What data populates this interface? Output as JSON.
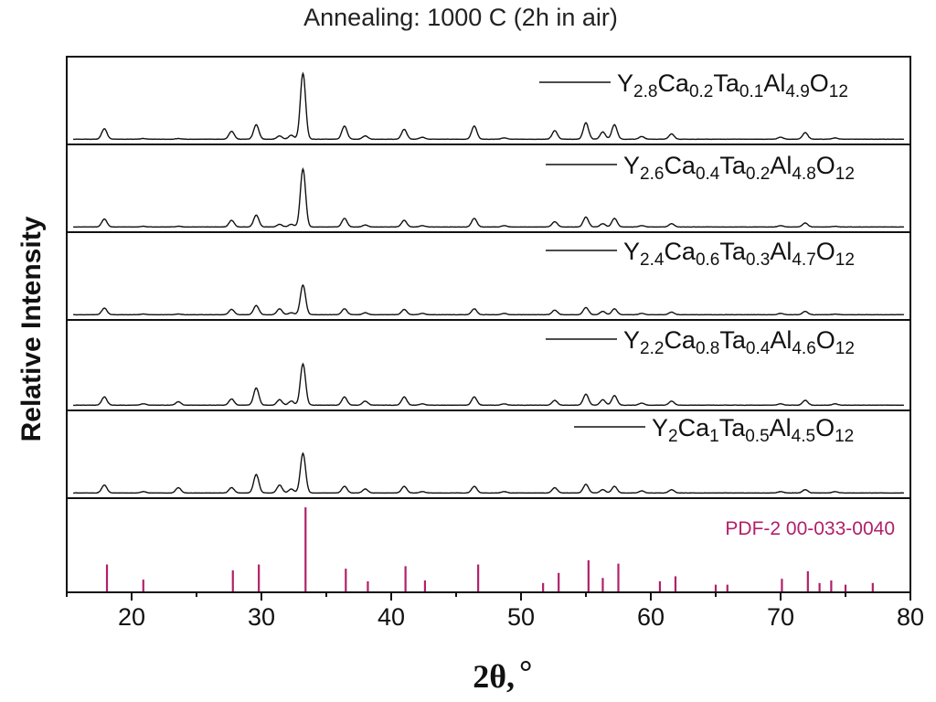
{
  "chart_data": {
    "type": "line",
    "title": "Annealing: 1000 C (2h in air)",
    "ylabel": "Relative Intensity",
    "xlabel": {
      "main": "2θ,",
      "unit": "°"
    },
    "xlim": [
      15,
      80
    ],
    "xticks": [
      20,
      30,
      40,
      50,
      60,
      70,
      80
    ],
    "grid": false,
    "legend_position": "top-right of each panel",
    "colors": {
      "pattern": "#111111",
      "reference": "#b0206a"
    },
    "peaks": [
      17.9,
      20.9,
      23.6,
      27.7,
      29.6,
      31.4,
      32.3,
      33.2,
      36.4,
      38.0,
      41.0,
      42.4,
      46.4,
      48.7,
      52.6,
      55.0,
      56.3,
      57.2,
      59.3,
      61.6,
      70.0,
      71.9,
      74.2
    ],
    "series": [
      {
        "name": "Y2.8Ca0.2Ta0.1Al4.9O12",
        "label": [
          {
            "t": "Y",
            "s": "n"
          },
          {
            "t": "2.8",
            "s": "b"
          },
          {
            "t": "Ca",
            "s": "n"
          },
          {
            "t": "0.2",
            "s": "b"
          },
          {
            "t": "Ta",
            "s": "n"
          },
          {
            "t": "0.1",
            "s": "b"
          },
          {
            "t": "Al",
            "s": "n"
          },
          {
            "t": "4.9",
            "s": "b"
          },
          {
            "t": "O",
            "s": "n"
          },
          {
            "t": "12",
            "s": "b"
          }
        ],
        "intensities": [
          0.16,
          0.01,
          0.01,
          0.12,
          0.22,
          0.05,
          0.06,
          1.0,
          0.2,
          0.05,
          0.15,
          0.03,
          0.2,
          0.02,
          0.13,
          0.25,
          0.11,
          0.22,
          0.04,
          0.08,
          0.03,
          0.1,
          0.02
        ]
      },
      {
        "name": "Y2.6Ca0.4Ta0.2Al4.8O12",
        "label": [
          {
            "t": "Y",
            "s": "n"
          },
          {
            "t": "2.6",
            "s": "b"
          },
          {
            "t": "Ca",
            "s": "n"
          },
          {
            "t": "0.4",
            "s": "b"
          },
          {
            "t": "Ta",
            "s": "n"
          },
          {
            "t": "0.2",
            "s": "b"
          },
          {
            "t": "Al",
            "s": "n"
          },
          {
            "t": "4.8",
            "s": "b"
          },
          {
            "t": "O",
            "s": "n"
          },
          {
            "t": "12",
            "s": "b"
          }
        ],
        "intensities": [
          0.12,
          0.01,
          0.01,
          0.1,
          0.18,
          0.04,
          0.04,
          0.88,
          0.13,
          0.03,
          0.1,
          0.02,
          0.13,
          0.02,
          0.08,
          0.15,
          0.05,
          0.13,
          0.02,
          0.05,
          0.02,
          0.06,
          0.01
        ]
      },
      {
        "name": "Y2.4Ca0.6Ta0.3Al4.7O12",
        "label": [
          {
            "t": "Y",
            "s": "n"
          },
          {
            "t": "2.4",
            "s": "b"
          },
          {
            "t": "Ca",
            "s": "n"
          },
          {
            "t": "0.6",
            "s": "b"
          },
          {
            "t": "Ta",
            "s": "n"
          },
          {
            "t": "0.3",
            "s": "b"
          },
          {
            "t": "Al",
            "s": "n"
          },
          {
            "t": "4.7",
            "s": "b"
          },
          {
            "t": "O",
            "s": "n"
          },
          {
            "t": "12",
            "s": "b"
          }
        ],
        "intensities": [
          0.1,
          0.01,
          0.01,
          0.08,
          0.14,
          0.09,
          0.03,
          0.45,
          0.09,
          0.03,
          0.08,
          0.02,
          0.09,
          0.02,
          0.07,
          0.11,
          0.05,
          0.09,
          0.02,
          0.04,
          0.02,
          0.05,
          0.01
        ]
      },
      {
        "name": "Y2.2Ca0.8Ta0.4Al4.6O12",
        "label": [
          {
            "t": "Y",
            "s": "n"
          },
          {
            "t": "2.2",
            "s": "b"
          },
          {
            "t": "Ca",
            "s": "n"
          },
          {
            "t": "0.8",
            "s": "b"
          },
          {
            "t": "Ta",
            "s": "n"
          },
          {
            "t": "0.4",
            "s": "b"
          },
          {
            "t": "Al",
            "s": "n"
          },
          {
            "t": "4.6",
            "s": "b"
          },
          {
            "t": "O",
            "s": "n"
          },
          {
            "t": "12",
            "s": "b"
          }
        ],
        "intensities": [
          0.12,
          0.02,
          0.05,
          0.09,
          0.25,
          0.08,
          0.06,
          0.6,
          0.12,
          0.06,
          0.12,
          0.02,
          0.12,
          0.02,
          0.07,
          0.16,
          0.08,
          0.14,
          0.03,
          0.06,
          0.02,
          0.07,
          0.02
        ]
      },
      {
        "name": "Y2Ca1Ta0.5Al4.5O12",
        "label": [
          {
            "t": "Y",
            "s": "n"
          },
          {
            "t": "2",
            "s": "b"
          },
          {
            "t": "Ca",
            "s": "n"
          },
          {
            "t": "1",
            "s": "b"
          },
          {
            "t": "Ta",
            "s": "n"
          },
          {
            "t": "0.5",
            "s": "b"
          },
          {
            "t": "Al",
            "s": "n"
          },
          {
            "t": "4.5",
            "s": "b"
          },
          {
            "t": "O",
            "s": "n"
          },
          {
            "t": "12",
            "s": "b"
          }
        ],
        "intensities": [
          0.12,
          0.02,
          0.08,
          0.08,
          0.28,
          0.12,
          0.06,
          0.6,
          0.1,
          0.06,
          0.1,
          0.02,
          0.1,
          0.02,
          0.08,
          0.13,
          0.05,
          0.1,
          0.03,
          0.05,
          0.02,
          0.05,
          0.02
        ]
      }
    ],
    "reference": {
      "label": "PDF-2 00-033-0040",
      "x": [
        18.1,
        20.9,
        27.8,
        29.8,
        33.4,
        36.5,
        38.2,
        41.1,
        42.6,
        46.7,
        51.7,
        52.9,
        55.2,
        56.3,
        57.5,
        60.7,
        61.9,
        65.0,
        65.9,
        70.1,
        72.1,
        73.0,
        73.9,
        75.0,
        77.1
      ],
      "intensity": [
        0.32,
        0.14,
        0.25,
        0.32,
        1.0,
        0.27,
        0.12,
        0.3,
        0.13,
        0.32,
        0.1,
        0.22,
        0.37,
        0.16,
        0.33,
        0.12,
        0.18,
        0.08,
        0.08,
        0.15,
        0.24,
        0.1,
        0.13,
        0.08,
        0.1
      ]
    }
  }
}
